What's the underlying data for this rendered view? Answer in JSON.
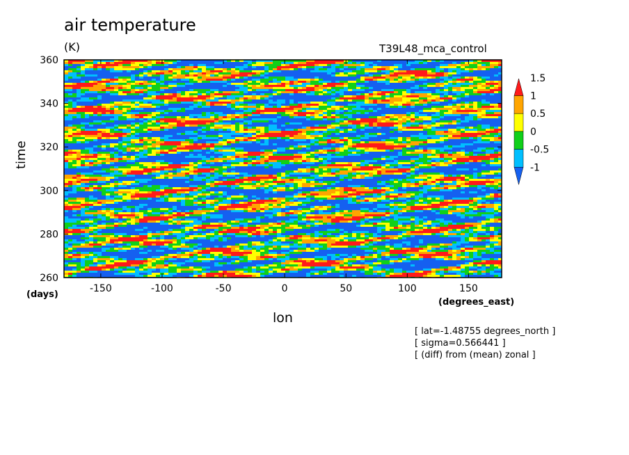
{
  "chart_data": {
    "type": "heatmap",
    "title": "air temperature",
    "units": "(K)",
    "dataset_label": "T39L48_mca_control",
    "xlabel": "lon",
    "ylabel": "time",
    "x_unit": "(degrees_east)",
    "y_unit": "(days)",
    "xlim": [
      -180,
      177
    ],
    "ylim": [
      260,
      360
    ],
    "x_ticks": [
      "-150",
      "-100",
      "-50",
      "0",
      "50",
      "100",
      "150"
    ],
    "y_ticks": [
      "260",
      "280",
      "300",
      "320",
      "340",
      "360"
    ],
    "colorbar": {
      "levels": [
        "-1",
        "-0.5",
        "0",
        "0.5",
        "1",
        "1.5"
      ],
      "colors": [
        "#1560f0",
        "#00bfff",
        "#10d01a",
        "#ffff00",
        "#ffa500",
        "#ff1a1a"
      ],
      "extend": "both"
    },
    "info": [
      "[ lat=-1.48755 degrees_north ]",
      "[ sigma=0.566441 ]",
      "[ (diff) from (mean) zonal ]"
    ]
  }
}
